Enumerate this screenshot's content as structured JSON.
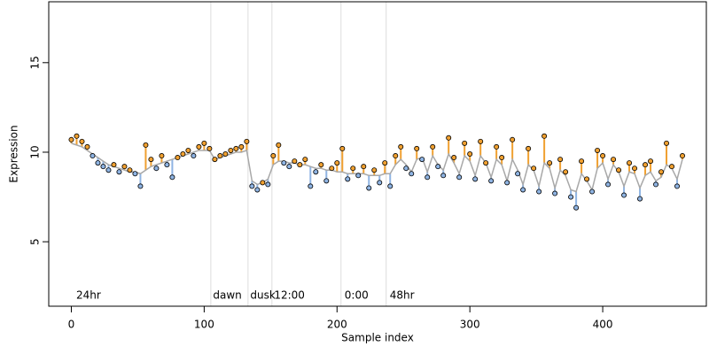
{
  "chart_data": {
    "type": "scatter",
    "x_label": "Sample index",
    "y_label": "Expression",
    "xlim": [
      -17,
      478
    ],
    "ylim": [
      1.4,
      18.4
    ],
    "xticks": [
      0,
      100,
      200,
      300,
      400
    ],
    "yticks": [
      5,
      10,
      15
    ],
    "above_color": "#f0a030",
    "below_color": "#8fb4e3",
    "fit_color": "#a8a8a8",
    "guide_color": "#dddddd",
    "guides": [
      105,
      133,
      151,
      203,
      237
    ],
    "annotations": [
      {
        "x": 3,
        "label": "24hr"
      },
      {
        "x": 106,
        "label": "dawn"
      },
      {
        "x": 134,
        "label": "dusk"
      },
      {
        "x": 152,
        "label": "12:00"
      },
      {
        "x": 205,
        "label": "0:00"
      },
      {
        "x": 239,
        "label": "48hr"
      }
    ],
    "x": [
      0,
      4,
      8,
      12,
      16,
      20,
      24,
      28,
      32,
      36,
      40,
      44,
      48,
      52,
      56,
      60,
      64,
      68,
      72,
      76,
      80,
      84,
      88,
      92,
      96,
      100,
      104,
      108,
      112,
      116,
      120,
      124,
      128,
      132,
      136,
      140,
      144,
      148,
      152,
      156,
      160,
      164,
      168,
      172,
      176,
      180,
      184,
      188,
      192,
      196,
      200,
      204,
      208,
      212,
      216,
      220,
      224,
      228,
      232,
      236,
      240,
      244,
      248,
      252,
      256,
      260,
      264,
      268,
      272,
      276,
      280,
      284,
      288,
      292,
      296,
      300,
      304,
      308,
      312,
      316,
      320,
      324,
      328,
      332,
      336,
      340,
      344,
      348,
      352,
      356,
      360,
      364,
      368,
      372,
      376,
      380,
      384,
      388,
      392,
      396,
      400,
      404,
      408,
      412,
      416,
      420,
      424,
      428,
      432,
      436,
      440,
      444,
      448,
      452,
      456,
      460
    ],
    "values": [
      10.7,
      10.9,
      10.6,
      10.3,
      9.8,
      9.4,
      9.2,
      9.0,
      9.3,
      8.9,
      9.2,
      9.0,
      8.8,
      8.1,
      10.4,
      9.6,
      9.1,
      9.8,
      9.3,
      8.6,
      9.7,
      9.9,
      10.1,
      9.8,
      10.3,
      10.5,
      10.2,
      9.6,
      9.8,
      9.9,
      10.1,
      10.2,
      10.3,
      10.6,
      8.1,
      7.9,
      8.3,
      8.2,
      9.8,
      10.4,
      9.4,
      9.2,
      9.5,
      9.3,
      9.6,
      8.1,
      8.9,
      9.3,
      8.4,
      9.1,
      9.4,
      10.2,
      8.5,
      9.1,
      8.7,
      9.2,
      8.0,
      9.0,
      8.3,
      9.4,
      8.1,
      9.8,
      10.3,
      9.1,
      8.8,
      10.2,
      9.6,
      8.6,
      10.3,
      9.2,
      8.7,
      10.8,
      9.7,
      8.6,
      10.5,
      9.9,
      8.5,
      10.6,
      9.4,
      8.4,
      10.3,
      9.7,
      8.3,
      10.7,
      8.8,
      7.9,
      10.2,
      9.1,
      7.8,
      10.9,
      9.4,
      7.7,
      9.6,
      8.9,
      7.5,
      6.9,
      9.5,
      8.5,
      7.8,
      10.1,
      9.8,
      8.2,
      9.6,
      9.0,
      7.6,
      9.4,
      9.1,
      7.4,
      9.3,
      9.5,
      8.2,
      8.9,
      10.5,
      9.2,
      8.1,
      9.8
    ],
    "fit": [
      10.5,
      10.4,
      10.3,
      10.1,
      9.9,
      9.7,
      9.5,
      9.3,
      9.2,
      9.1,
      9.0,
      8.9,
      8.9,
      8.8,
      9.0,
      9.2,
      9.3,
      9.4,
      9.5,
      9.6,
      9.7,
      9.8,
      9.9,
      10.0,
      10.1,
      10.1,
      10.1,
      9.6,
      9.7,
      9.8,
      9.9,
      10.0,
      10.0,
      10.1,
      8.4,
      8.2,
      8.3,
      8.5,
      9.3,
      9.5,
      9.5,
      9.4,
      9.4,
      9.3,
      9.3,
      9.2,
      9.1,
      9.1,
      9.0,
      9.0,
      8.9,
      8.9,
      8.8,
      8.8,
      8.8,
      8.8,
      8.7,
      8.7,
      8.7,
      8.8,
      8.8,
      9.3,
      9.6,
      9.3,
      8.9,
      9.6,
      9.7,
      8.9,
      9.8,
      9.3,
      9.0,
      9.9,
      9.4,
      8.8,
      9.8,
      9.5,
      8.7,
      9.8,
      9.4,
      8.6,
      9.6,
      9.3,
      8.4,
      9.6,
      9.0,
      8.2,
      9.3,
      9.0,
      8.1,
      9.4,
      9.1,
      8.0,
      9.0,
      8.7,
      7.9,
      7.8,
      8.8,
      8.4,
      7.9,
      9.1,
      9.4,
      8.5,
      9.3,
      8.9,
      8.1,
      8.9,
      8.8,
      8.0,
      8.7,
      8.9,
      8.4,
      8.6,
      9.3,
      9.1,
      8.5,
      9.6
    ]
  }
}
